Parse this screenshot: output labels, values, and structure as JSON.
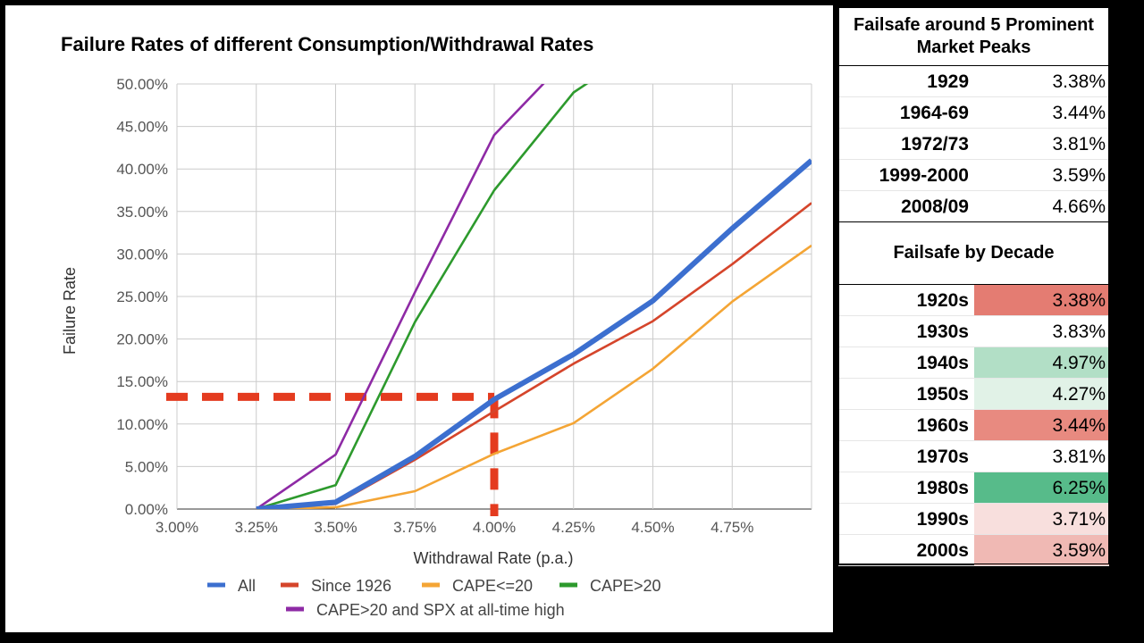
{
  "chart_data": {
    "type": "line",
    "title": "Failure Rates of different Consumption/Withdrawal Rates",
    "xlabel": "Withdrawal Rate (p.a.)",
    "ylabel": "Failure Rate",
    "xlim": [
      3.0,
      5.0
    ],
    "ylim": [
      0,
      50
    ],
    "x_ticks": [
      "3.00%",
      "3.25%",
      "3.50%",
      "3.75%",
      "4.00%",
      "4.25%",
      "4.50%",
      "4.75%"
    ],
    "y_ticks": [
      "0.00%",
      "5.00%",
      "10.00%",
      "15.00%",
      "20.00%",
      "25.00%",
      "30.00%",
      "35.00%",
      "40.00%",
      "45.00%",
      "50.00%"
    ],
    "grid": true,
    "legend_position": "bottom",
    "series": [
      {
        "name": "All",
        "color": "#3c6fcf",
        "x": [
          3.25,
          3.5,
          3.75,
          4.0,
          4.25,
          4.5,
          4.75,
          5.0
        ],
        "y": [
          0,
          0.8,
          6.2,
          12.9,
          18.2,
          24.5,
          33,
          41
        ]
      },
      {
        "name": "Since 1926",
        "color": "#d5452b",
        "x": [
          3.25,
          3.5,
          3.75,
          4.0,
          4.25,
          4.5,
          4.75,
          5.0
        ],
        "y": [
          0,
          0.6,
          5.8,
          11.5,
          17.1,
          22.1,
          28.8,
          36
        ]
      },
      {
        "name": "CAPE<=20",
        "color": "#f4a535",
        "x": [
          3.25,
          3.5,
          3.75,
          4.0,
          4.25,
          4.5,
          4.75,
          5.0
        ],
        "y": [
          0,
          0.2,
          2.1,
          6.5,
          10.1,
          16.5,
          24.4,
          31
        ]
      },
      {
        "name": "CAPE>20",
        "color": "#2d9a2d",
        "x": [
          3.25,
          3.5,
          3.75,
          4.0,
          4.25,
          4.33
        ],
        "y": [
          0,
          2.8,
          22,
          37.5,
          49,
          51
        ]
      },
      {
        "name": "CAPE>20 and SPX at all-time high",
        "color": "#8e2aa5",
        "x": [
          3.25,
          3.5,
          3.75,
          4.0,
          4.18
        ],
        "y": [
          0,
          6.4,
          25.5,
          44,
          51
        ]
      }
    ],
    "annotation_line": {
      "color": "#e43b1f",
      "y_value": 13.2,
      "x_value": 4.0
    }
  },
  "tables": {
    "peaks": {
      "title": "Failsafe around 5 Prominent Market Peaks",
      "rows": [
        {
          "label": "1929",
          "value": "3.38%",
          "color": ""
        },
        {
          "label": "1964-69",
          "value": "3.44%",
          "color": ""
        },
        {
          "label": "1972/73",
          "value": "3.81%",
          "color": ""
        },
        {
          "label": "1999-2000",
          "value": "3.59%",
          "color": ""
        },
        {
          "label": "2008/09",
          "value": "4.66%",
          "color": ""
        }
      ]
    },
    "decades": {
      "title": "Failsafe by Decade",
      "rows": [
        {
          "label": "1920s",
          "value": "3.38%",
          "color": "#e47c72"
        },
        {
          "label": "1930s",
          "value": "3.83%",
          "color": ""
        },
        {
          "label": "1940s",
          "value": "4.97%",
          "color": "#b2dfc6"
        },
        {
          "label": "1950s",
          "value": "4.27%",
          "color": "#e1f2e7"
        },
        {
          "label": "1960s",
          "value": "3.44%",
          "color": "#e88a80"
        },
        {
          "label": "1970s",
          "value": "3.81%",
          "color": ""
        },
        {
          "label": "1980s",
          "value": "6.25%",
          "color": "#57bb8a"
        },
        {
          "label": "1990s",
          "value": "3.71%",
          "color": "#f8dfdd"
        },
        {
          "label": "2000s",
          "value": "3.59%",
          "color": "#f0b9b4"
        }
      ]
    }
  }
}
